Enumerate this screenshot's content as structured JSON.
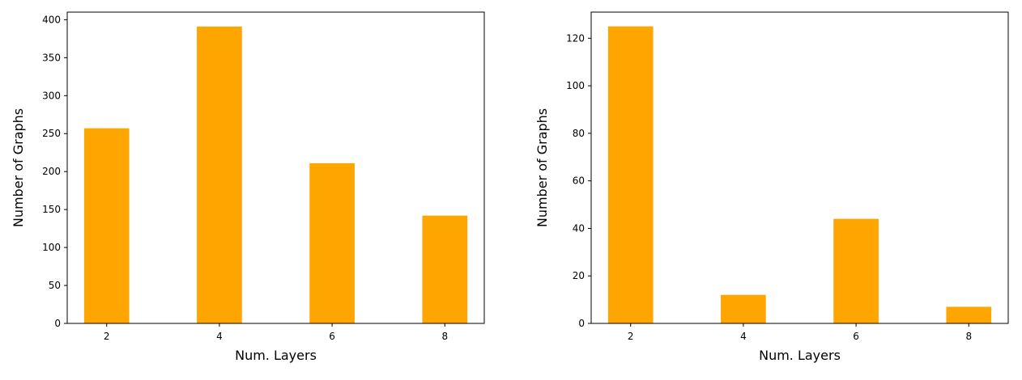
{
  "chart_data": [
    {
      "type": "bar",
      "x": [
        2,
        4,
        6,
        8
      ],
      "values": [
        257,
        391,
        211,
        142
      ],
      "xlabel": "Num. Layers",
      "ylabel": "Number of Graphs",
      "xlim": [
        1.3,
        8.7
      ],
      "ylim": [
        0,
        410
      ],
      "x_ticks": [
        "2",
        "4",
        "6",
        "8"
      ],
      "y_ticks": [
        "0",
        "50",
        "100",
        "150",
        "200",
        "250",
        "300",
        "350",
        "400"
      ],
      "bar_width": 0.8,
      "grid": false,
      "color": "#FFA500"
    },
    {
      "type": "bar",
      "x": [
        2,
        4,
        6,
        8
      ],
      "values": [
        125,
        12,
        44,
        7
      ],
      "xlabel": "Num. Layers",
      "ylabel": "Number of Graphs",
      "xlim": [
        1.3,
        8.7
      ],
      "ylim": [
        0,
        131
      ],
      "x_ticks": [
        "2",
        "4",
        "6",
        "8"
      ],
      "y_ticks": [
        "0",
        "20",
        "40",
        "60",
        "80",
        "100",
        "120"
      ],
      "bar_width": 0.8,
      "grid": false,
      "color": "#FFA500"
    }
  ]
}
